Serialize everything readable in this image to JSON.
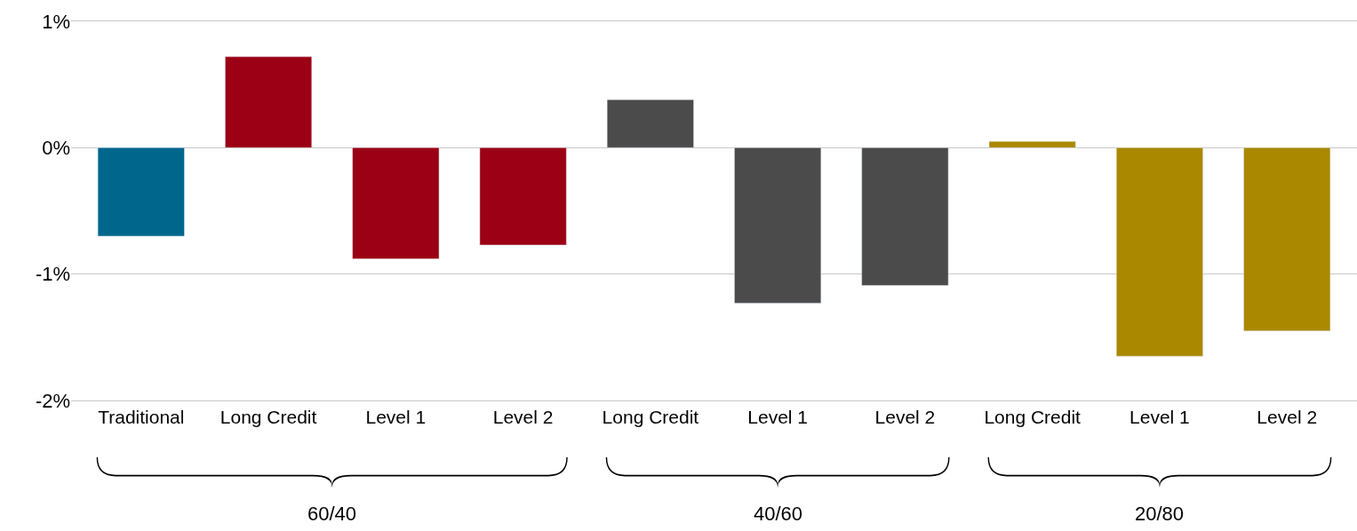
{
  "chart_data": {
    "type": "bar",
    "categories": [
      "Traditional",
      "Long Credit",
      "Level 1",
      "Level 2",
      "Long Credit",
      "Level 1",
      "Level 2",
      "Long Credit",
      "Level 1",
      "Level 2"
    ],
    "series": [
      {
        "color": "#00668c",
        "values": [
          -0.7,
          null,
          null,
          null,
          null,
          null,
          null,
          null,
          null,
          null
        ]
      },
      {
        "color": "#9b0014",
        "values": [
          null,
          0.72,
          -0.88,
          -0.77,
          null,
          null,
          null,
          null,
          null,
          null
        ]
      },
      {
        "color": "#4b4b4b",
        "values": [
          null,
          null,
          null,
          null,
          0.38,
          -1.23,
          -1.09,
          null,
          null,
          null
        ]
      },
      {
        "color": "#aa8800",
        "values": [
          null,
          null,
          null,
          null,
          null,
          null,
          null,
          0.05,
          -1.65,
          -1.45
        ]
      }
    ],
    "ylim": [
      -2,
      1
    ],
    "yticks": [
      {
        "value": -2,
        "label": "-2%"
      },
      {
        "value": -1,
        "label": "-1%"
      },
      {
        "value": 0,
        "label": "0%"
      },
      {
        "value": 1,
        "label": "1%"
      }
    ],
    "grid": "y",
    "annotations": [
      "60/40",
      "40/60",
      "20/80"
    ]
  }
}
